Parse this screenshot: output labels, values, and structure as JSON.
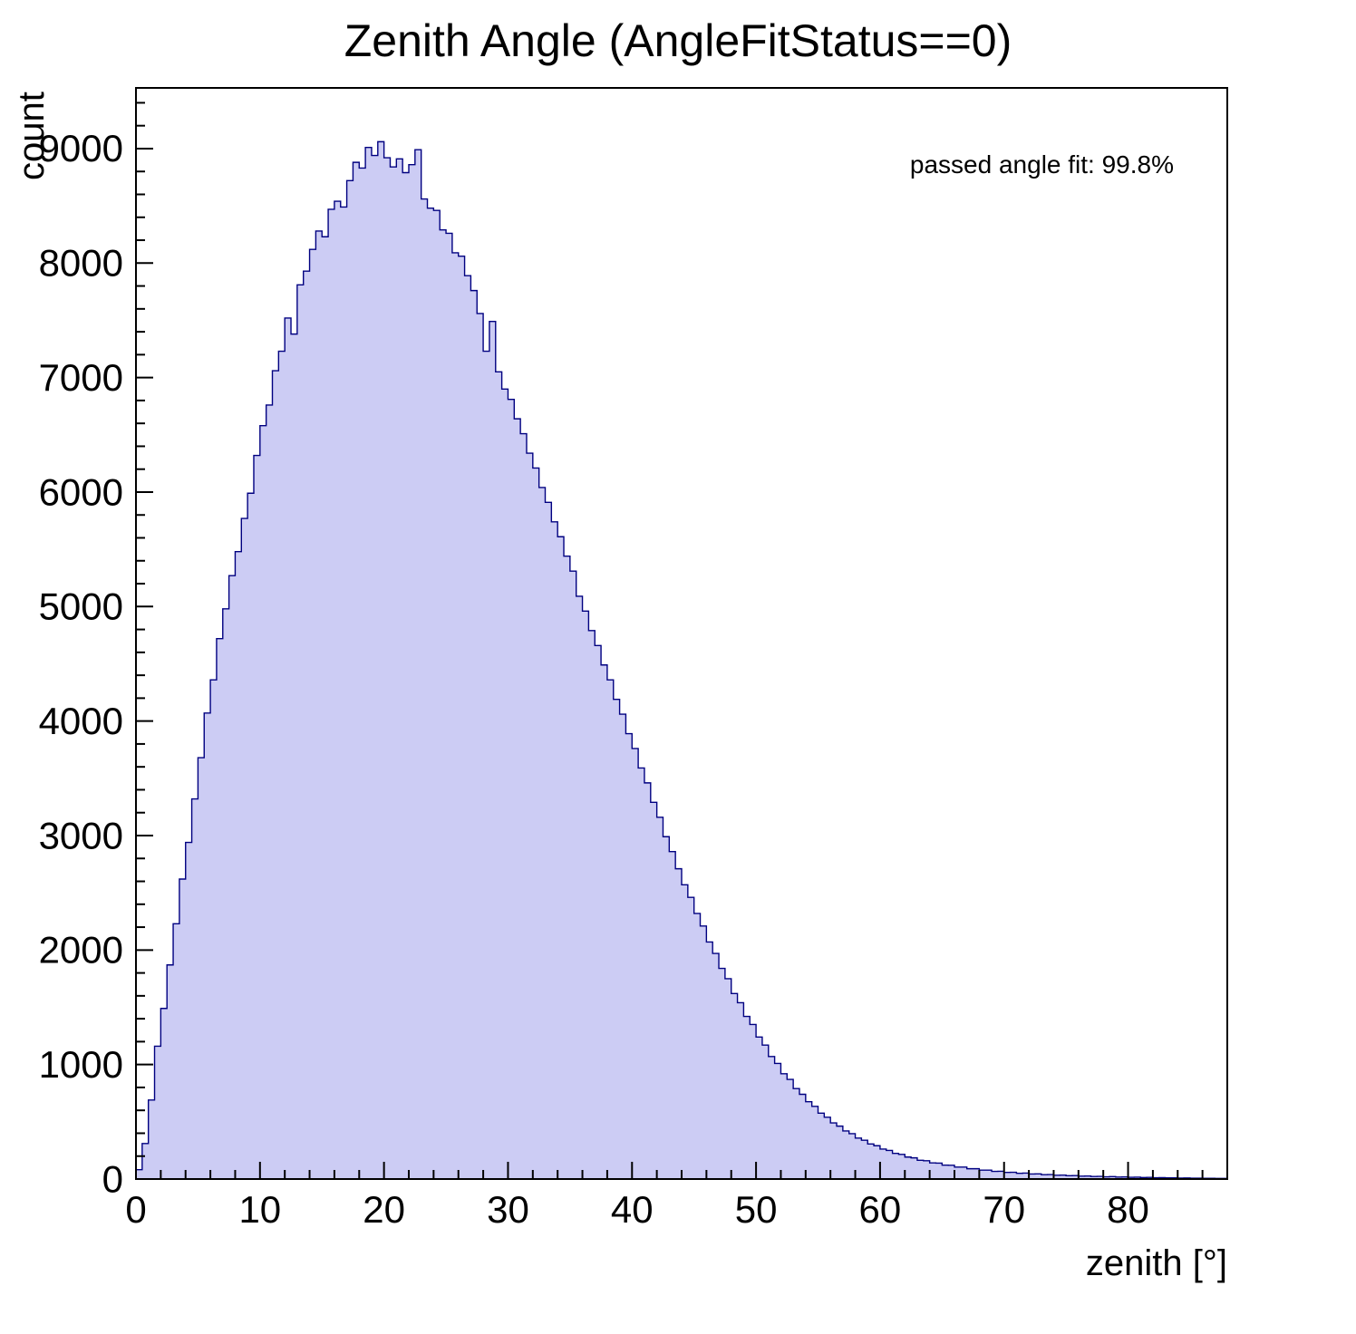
{
  "chart_data": {
    "type": "bar",
    "subtype": "histogram",
    "title": "Zenith Angle (AngleFitStatus==0)",
    "xlabel": "zenith [°]",
    "ylabel": "count",
    "annotation": "passed angle fit: 99.8%",
    "xlim": [
      0,
      88
    ],
    "ylim": [
      0,
      9530
    ],
    "x_major_ticks": [
      0,
      10,
      20,
      30,
      40,
      50,
      60,
      70,
      80
    ],
    "x_minor_step": 2,
    "y_major_ticks": [
      0,
      1000,
      2000,
      3000,
      4000,
      5000,
      6000,
      7000,
      8000,
      9000
    ],
    "y_minor_step": 200,
    "grid": false,
    "legend_position": "none",
    "fill_color": "#ccccf4",
    "line_color": "#000080",
    "frame_color": "#000000",
    "bin_start": 0,
    "bin_width": 0.5,
    "counts": [
      82,
      310,
      690,
      1160,
      1490,
      1870,
      2230,
      2620,
      2940,
      3320,
      3680,
      4070,
      4360,
      4720,
      4980,
      5270,
      5480,
      5770,
      5990,
      6320,
      6580,
      6760,
      7060,
      7230,
      7520,
      7380,
      7810,
      7930,
      8120,
      8280,
      8230,
      8470,
      8540,
      8490,
      8720,
      8880,
      8830,
      9010,
      8940,
      9060,
      8920,
      8840,
      8910,
      8790,
      8860,
      8990,
      8560,
      8480,
      8460,
      8290,
      8260,
      8090,
      8060,
      7890,
      7760,
      7560,
      7230,
      7490,
      7050,
      6900,
      6810,
      6640,
      6510,
      6340,
      6210,
      6040,
      5910,
      5740,
      5610,
      5440,
      5310,
      5090,
      4960,
      4790,
      4660,
      4490,
      4360,
      4190,
      4060,
      3890,
      3760,
      3590,
      3460,
      3290,
      3160,
      2990,
      2860,
      2710,
      2570,
      2460,
      2320,
      2210,
      2070,
      1970,
      1840,
      1750,
      1620,
      1540,
      1420,
      1350,
      1240,
      1170,
      1070,
      1010,
      920,
      870,
      790,
      740,
      675,
      635,
      575,
      540,
      490,
      462,
      420,
      396,
      358,
      339,
      306,
      291,
      262,
      250,
      224,
      215,
      192,
      185,
      164,
      160,
      141,
      139,
      121,
      120,
      104,
      104,
      90,
      90,
      78,
      78,
      67,
      68,
      58,
      59,
      50,
      52,
      44,
      45,
      38,
      39,
      33,
      34,
      29,
      30,
      25,
      26,
      22,
      23,
      19,
      21,
      17,
      18,
      15,
      16,
      13,
      14,
      11,
      12,
      10,
      10,
      8,
      9,
      7,
      7,
      6,
      6,
      5,
      5
    ]
  }
}
